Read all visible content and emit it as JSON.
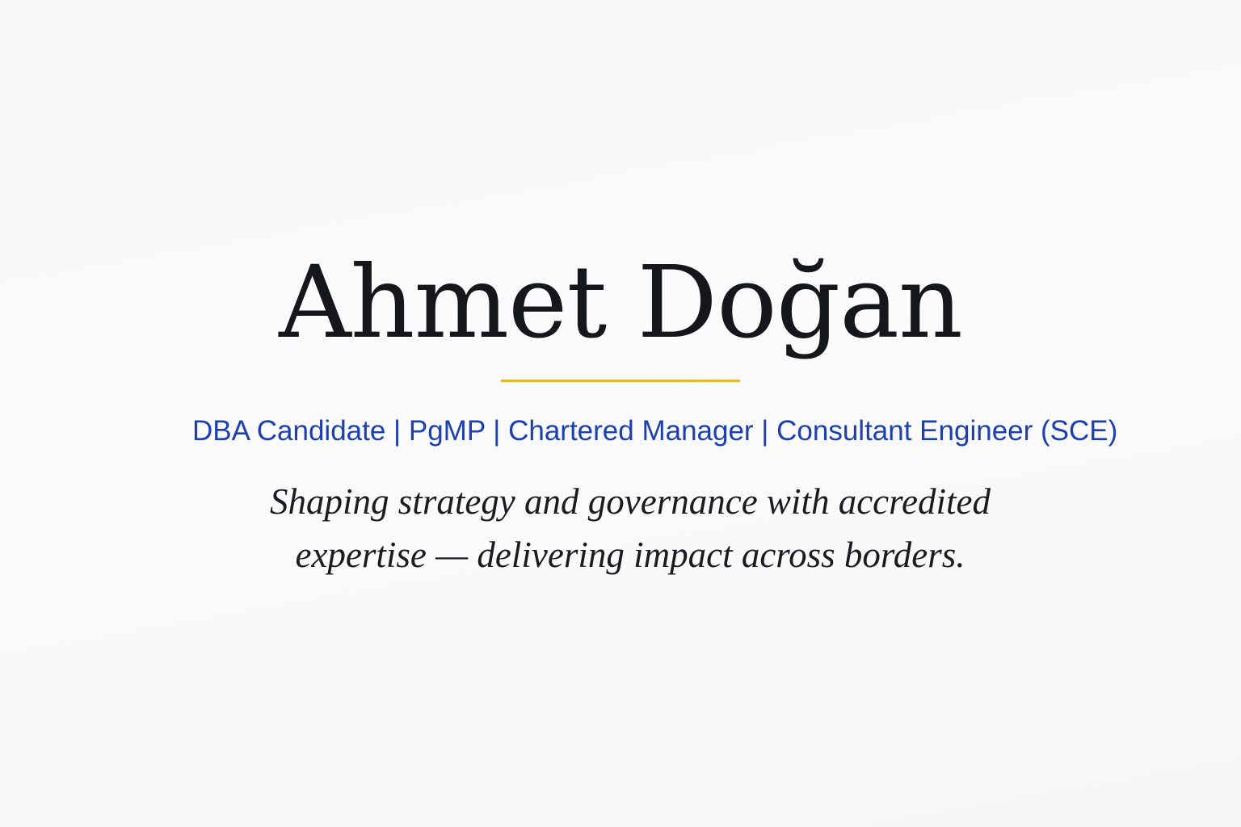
{
  "profile": {
    "name": "Ahmet Doğan",
    "credentials": "DBA Candidate | PgMP | Chartered Manager | Consultant Engineer (SCE)",
    "tagline_line1": "Shaping strategy and governance with accredited",
    "tagline_line2": "expertise — delivering impact across borders."
  },
  "colors": {
    "background": "#f8f8fa",
    "name": "#16171b",
    "accent_rule": "#e6b830",
    "credentials": "#1d40b0",
    "tagline": "#1b1c20"
  }
}
